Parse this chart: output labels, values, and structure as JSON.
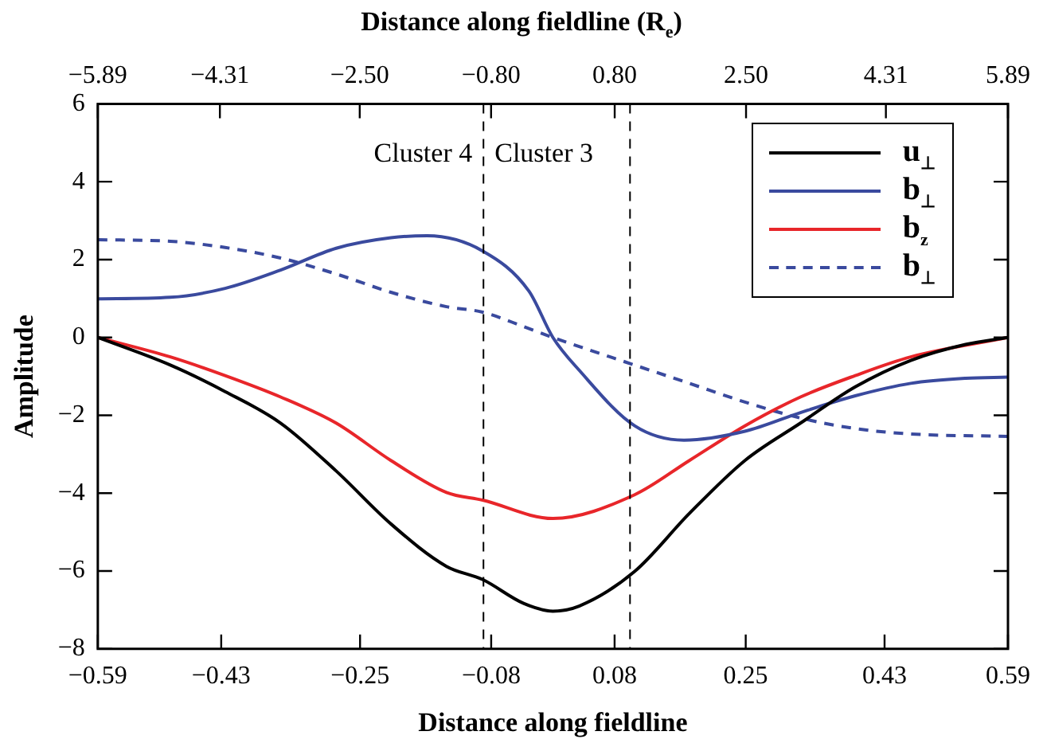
{
  "chart_data": {
    "type": "line",
    "xlabel": "Distance along fieldline",
    "x2label": "Distance along fieldline (R$_{e}$)",
    "ylabel": "Amplitude",
    "xlim": [
      -0.59,
      0.59
    ],
    "xticks": [
      {
        "value": -0.59,
        "label": "−0.59"
      },
      {
        "value": -0.43,
        "label": "−0.43"
      },
      {
        "value": -0.25,
        "label": "−0.25"
      },
      {
        "value": -0.08,
        "label": "−0.08"
      },
      0.08,
      0.25,
      0.43,
      0.59
    ],
    "x2lim": [
      -5.89,
      5.89
    ],
    "x2ticks": [
      {
        "value": -5.89,
        "label": "−5.89"
      },
      {
        "value": -4.31,
        "label": "−4.31"
      },
      {
        "value": -2.5,
        "label": "−2.50"
      },
      {
        "value": -0.8,
        "label": "−0.80"
      },
      {
        "value": 0.8,
        "label": "0.80"
      },
      {
        "value": 2.5,
        "label": "2.50"
      },
      4.31,
      5.89
    ],
    "ylim": [
      -8,
      6
    ],
    "yticks": [
      {
        "value": -8,
        "label": "−8"
      },
      {
        "value": -6,
        "label": "−6"
      },
      {
        "value": -4,
        "label": "−4"
      },
      {
        "value": -2,
        "label": "−2"
      },
      0,
      2,
      4,
      6
    ],
    "grid": false,
    "legend": "top right",
    "marker": "none",
    "ref_lines": [
      {
        "axis": "x",
        "value": -0.09,
        "color": "#000000",
        "line_style": "dashed"
      },
      {
        "axis": "x",
        "value": 0.1,
        "color": "#000000",
        "line_style": "dashed"
      }
    ],
    "annotations": [
      "Cluster 4",
      "Cluster 3"
    ],
    "series": [
      {
        "name": "u$_{⊥}$",
        "color": "#000000",
        "line_style": "solid",
        "x": [
          -0.59,
          -0.496,
          -0.425,
          -0.353,
          -0.281,
          -0.21,
          -0.138,
          -0.091,
          -0.038,
          0.0,
          0.034,
          0.106,
          0.177,
          0.249,
          0.321,
          0.392,
          0.464,
          0.535,
          0.59
        ],
        "values": [
          0,
          -0.71,
          -1.39,
          -2.2,
          -3.43,
          -4.79,
          -5.88,
          -6.22,
          -6.83,
          -7.03,
          -6.9,
          -6.01,
          -4.52,
          -3.16,
          -2.2,
          -1.27,
          -0.59,
          -0.18,
          0
        ]
      },
      {
        "name": "b$_{⊥}$",
        "color": "#3a4a9e",
        "line_style": "solid",
        "x": [
          -0.59,
          -0.496,
          -0.425,
          -0.353,
          -0.281,
          -0.21,
          -0.163,
          -0.091,
          -0.031,
          0.0,
          0.034,
          0.106,
          0.17,
          0.249,
          0.321,
          0.392,
          0.464,
          0.535,
          0.59
        ],
        "values": [
          0.99,
          1.03,
          1.26,
          1.73,
          2.29,
          2.56,
          2.61,
          2.22,
          1.19,
          0,
          -0.84,
          -2.27,
          -2.64,
          -2.41,
          -1.93,
          -1.5,
          -1.18,
          -1.05,
          -1.02
        ]
      },
      {
        "name": "b$_{z}$",
        "color": "#e8262a",
        "line_style": "solid",
        "x": [
          -0.59,
          -0.496,
          -0.425,
          -0.353,
          -0.281,
          -0.21,
          -0.138,
          -0.091,
          0.0,
          0.106,
          0.177,
          0.249,
          0.321,
          0.392,
          0.464,
          0.59
        ],
        "values": [
          0,
          -0.5,
          -0.98,
          -1.53,
          -2.2,
          -3.16,
          -3.98,
          -4.18,
          -4.65,
          -4.04,
          -3.16,
          -2.27,
          -1.53,
          -0.98,
          -0.5,
          0
        ]
      },
      {
        "name": "b$_{⊥}$",
        "color": "#3a4a9e",
        "line_style": "dashed",
        "x": [
          -0.59,
          -0.496,
          -0.425,
          -0.353,
          -0.281,
          -0.21,
          -0.138,
          -0.091,
          -0.038,
          0.0,
          0.106,
          0.177,
          0.249,
          0.321,
          0.392,
          0.464,
          0.59
        ],
        "values": [
          2.51,
          2.47,
          2.31,
          2.04,
          1.63,
          1.16,
          0.79,
          0.65,
          0.28,
          0,
          -0.71,
          -1.18,
          -1.66,
          -2.07,
          -2.34,
          -2.48,
          -2.54
        ]
      }
    ]
  }
}
